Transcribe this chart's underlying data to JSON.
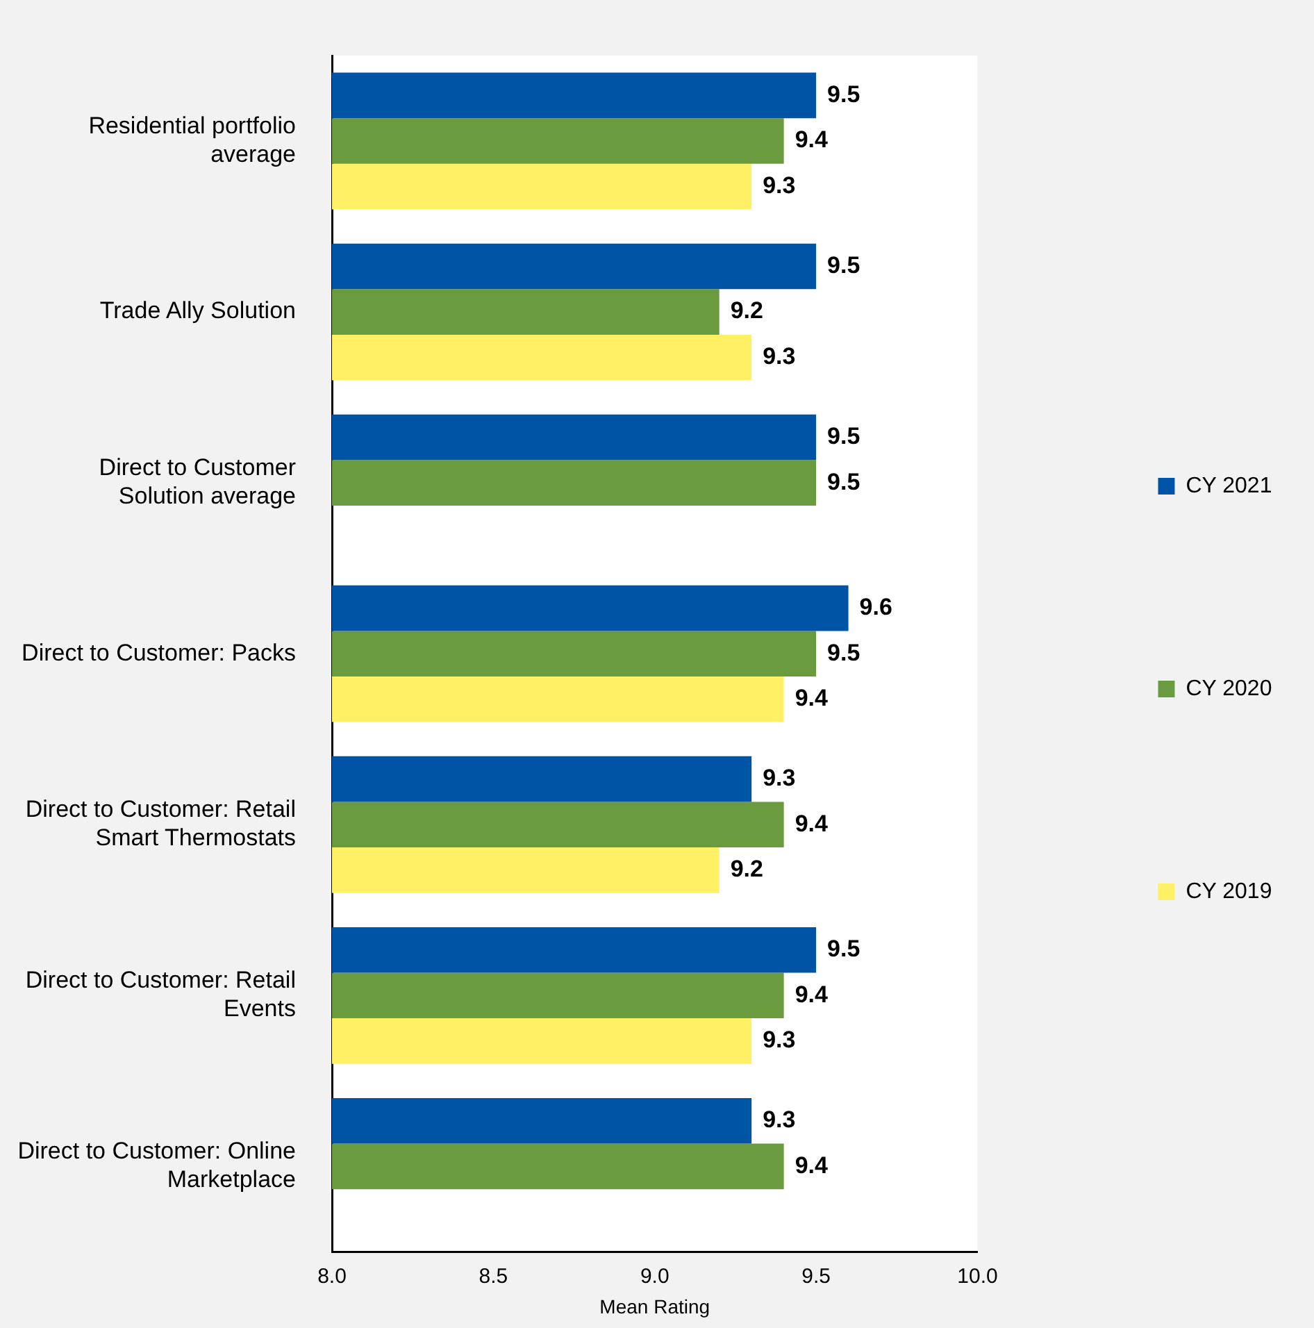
{
  "chart_data": {
    "type": "bar",
    "orientation": "horizontal",
    "xlabel": "Mean Rating",
    "categories": [
      "Residential portfolio average",
      "Trade Ally Solution",
      "Direct to Customer Solution average",
      "Direct to Customer: Packs",
      "Direct to Customer: Retail Smart Thermostats",
      "Direct to Customer: Retail Events",
      "Direct to Customer: Online Marketplace"
    ],
    "series": [
      {
        "name": "CY 2021",
        "color": "#0054a6",
        "values": [
          9.5,
          9.5,
          9.5,
          9.6,
          9.3,
          9.5,
          9.3
        ]
      },
      {
        "name": "CY 2020",
        "color": "#6a9b3f",
        "values": [
          9.4,
          9.2,
          9.5,
          9.5,
          9.4,
          9.4,
          9.4
        ]
      },
      {
        "name": "CY 2019",
        "color": "#fff066",
        "values": [
          9.3,
          9.3,
          null,
          9.4,
          9.2,
          9.3,
          null
        ]
      }
    ],
    "xlim": [
      8,
      10
    ],
    "xticks": [
      {
        "value": 8,
        "label": "8.0"
      },
      {
        "value": 8.5,
        "label": "8.5"
      },
      {
        "value": 9,
        "label": "9.0"
      },
      {
        "value": 9.5,
        "label": "9.5"
      },
      {
        "value": 10,
        "label": "10.0"
      }
    ],
    "grid": false,
    "legend": "right",
    "data_labels": true
  }
}
